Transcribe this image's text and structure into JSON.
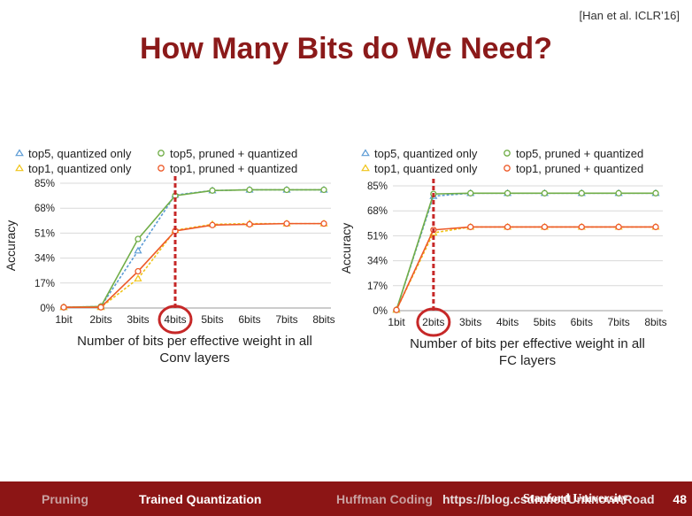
{
  "slide": {
    "citation": "[Han et al. ICLR’16]",
    "title": "How Many Bits do We Need?",
    "page_number": "48"
  },
  "footer": {
    "items": [
      "Pruning",
      "Trained Quantization",
      "Huffman Coding"
    ],
    "active": "Trained Quantization",
    "watermark": "https://blog.csdn.net/UnknownRoad",
    "university": "Stanford University",
    "colors": {
      "bar": "#8c1515"
    }
  },
  "chart_data": [
    {
      "type": "line",
      "categories": [
        "1bit",
        "2bits",
        "3bits",
        "4bits",
        "5bits",
        "6bits",
        "7bits",
        "8bits"
      ],
      "ylabel": "Accuracy",
      "yticks": [
        "0%",
        "17%",
        "34%",
        "51%",
        "68%",
        "85%"
      ],
      "ylim": [
        0,
        85
      ],
      "xlabel": "Number of bits per effective weight in all Conv layers",
      "xlabel_lines": [
        "Number of bits per effective weight in all",
        "Conv layers"
      ],
      "highlight": "4bits",
      "series": [
        {
          "name": "top5, quantized only",
          "marker": "triangle",
          "color": "#5b9bd5",
          "dashed": true,
          "values": [
            0.5,
            1,
            39,
            77,
            80,
            80.5,
            80.5,
            80.5
          ]
        },
        {
          "name": "top5, pruned + quantized",
          "marker": "circle",
          "color": "#70ad47",
          "dashed": false,
          "values": [
            0.5,
            1,
            47,
            76.5,
            80,
            80.5,
            80.5,
            80.5
          ]
        },
        {
          "name": "top1, quantized only",
          "marker": "triangle",
          "color": "#f0c419",
          "dashed": true,
          "values": [
            0.5,
            0.5,
            20,
            53,
            57,
            57.5,
            57.5,
            57.5
          ]
        },
        {
          "name": "top1, pruned + quantized",
          "marker": "circle",
          "color": "#ed5a29",
          "dashed": false,
          "values": [
            0.5,
            0.5,
            25,
            52.5,
            56.5,
            57,
            57.5,
            57.5
          ]
        }
      ]
    },
    {
      "type": "line",
      "categories": [
        "1bit",
        "2bits",
        "3bits",
        "4bits",
        "5bits",
        "6bits",
        "7bits",
        "8bits"
      ],
      "ylabel": "Accuracy",
      "yticks": [
        "0%",
        "17%",
        "34%",
        "51%",
        "68%",
        "85%"
      ],
      "ylim": [
        0,
        85
      ],
      "xlabel": "Number of bits per effective weight in all FC layers",
      "xlabel_lines": [
        "Number of bits per effective weight in all",
        "FC layers"
      ],
      "highlight": "2bits",
      "series": [
        {
          "name": "top5, quantized only",
          "marker": "triangle",
          "color": "#5b9bd5",
          "dashed": true,
          "values": [
            0.5,
            78,
            80,
            80,
            80,
            80,
            80,
            80
          ]
        },
        {
          "name": "top5, pruned + quantized",
          "marker": "circle",
          "color": "#70ad47",
          "dashed": false,
          "values": [
            0.5,
            79.5,
            80,
            80,
            80,
            80,
            80,
            80
          ]
        },
        {
          "name": "top1, quantized only",
          "marker": "triangle",
          "color": "#f0c419",
          "dashed": true,
          "values": [
            0.5,
            53,
            57,
            57,
            57,
            57,
            57,
            57
          ]
        },
        {
          "name": "top1, pruned + quantized",
          "marker": "circle",
          "color": "#ed5a29",
          "dashed": false,
          "values": [
            0.5,
            55,
            57,
            57,
            57,
            57,
            57,
            57
          ]
        }
      ]
    }
  ]
}
